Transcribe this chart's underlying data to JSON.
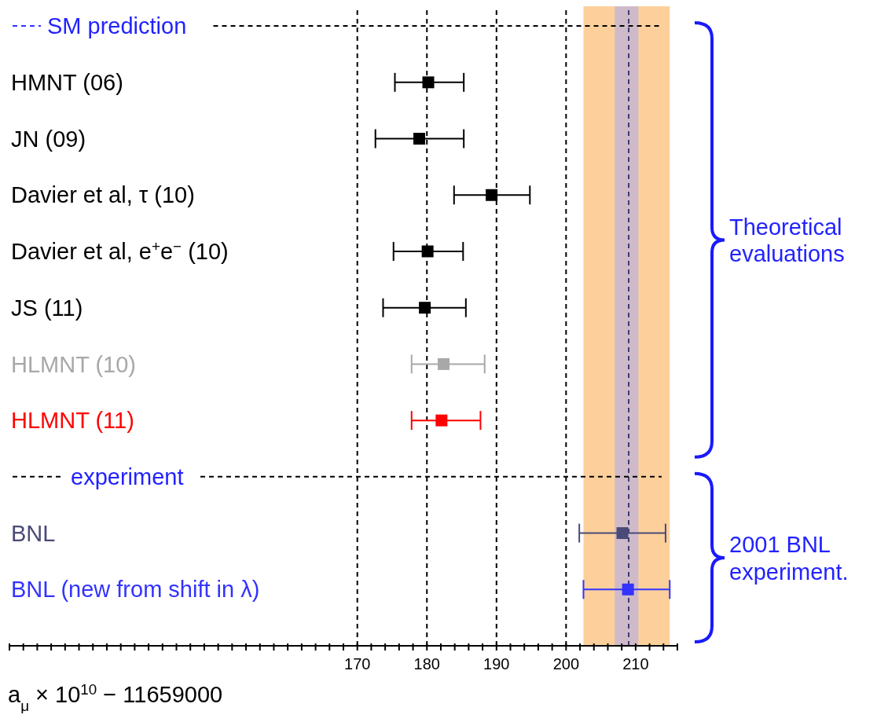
{
  "chart_data": {
    "type": "scatter",
    "marker": "square",
    "orientation": "horizontal",
    "categories": [
      null,
      "HMNT (06)",
      "JN (09)",
      "Davier et al, τ (10)",
      "Davier et al, e$^{+}$e$^{−}$ (10)",
      "JS (11)",
      "HLMNT (10)",
      "HLMNT (11)",
      null,
      "BNL",
      "BNL (new from shift in λ)"
    ],
    "values": [
      null,
      180.2,
      178.9,
      189.3,
      180.1,
      179.7,
      182.4,
      182.1,
      null,
      208.1,
      208.9
    ],
    "errors": [
      null,
      [
        175.4,
        185.3
      ],
      [
        172.6,
        185.3
      ],
      [
        183.9,
        194.8
      ],
      [
        175.2,
        185.2
      ],
      [
        173.7,
        185.6
      ],
      [
        177.8,
        188.3
      ],
      [
        177.8,
        187.7
      ],
      null,
      [
        201.9,
        214.3
      ],
      [
        202.5,
        214.9
      ]
    ],
    "colors": [
      null,
      "#000000",
      "#000000",
      "#000000",
      "#000000",
      "#000000",
      "#a8a8a8",
      "#ff0000",
      null,
      "#4a4a78",
      "#3333ff"
    ],
    "xlabel": "a$_{μ}$ × 10$^{10}$ − 11659000",
    "xlim": [
      120,
      216
    ],
    "xticks": [
      {
        "value": 120,
        "label": null
      },
      {
        "value": 122,
        "label": null
      },
      {
        "value": 124,
        "label": null
      },
      {
        "value": 126,
        "label": null
      },
      {
        "value": 128,
        "label": null
      },
      {
        "value": 130,
        "label": null
      },
      {
        "value": 132,
        "label": null
      },
      {
        "value": 134,
        "label": null
      },
      {
        "value": 136,
        "label": null
      },
      {
        "value": 138,
        "label": null
      },
      {
        "value": 140,
        "label": null
      },
      {
        "value": 142,
        "label": null
      },
      {
        "value": 144,
        "label": null
      },
      {
        "value": 146,
        "label": null
      },
      {
        "value": 148,
        "label": null
      },
      {
        "value": 150,
        "label": null
      },
      {
        "value": 152,
        "label": null
      },
      {
        "value": 154,
        "label": null
      },
      {
        "value": 156,
        "label": null
      },
      {
        "value": 158,
        "label": null
      },
      {
        "value": 160,
        "label": null
      },
      {
        "value": 162,
        "label": null
      },
      {
        "value": 164,
        "label": null
      },
      {
        "value": 166,
        "label": null
      },
      {
        "value": 168,
        "label": null
      },
      170,
      {
        "value": 172,
        "label": null
      },
      {
        "value": 174,
        "label": null
      },
      {
        "value": 176,
        "label": null
      },
      {
        "value": 178,
        "label": null
      },
      180,
      {
        "value": 182,
        "label": null
      },
      {
        "value": 184,
        "label": null
      },
      {
        "value": 186,
        "label": null
      },
      {
        "value": 188,
        "label": null
      },
      190,
      {
        "value": 192,
        "label": null
      },
      {
        "value": 194,
        "label": null
      },
      {
        "value": 196,
        "label": null
      },
      {
        "value": 198,
        "label": null
      },
      200,
      {
        "value": 202,
        "label": null
      },
      {
        "value": 204,
        "label": null
      },
      {
        "value": 206,
        "label": null
      },
      {
        "value": 208,
        "label": null
      },
      210,
      {
        "value": 212,
        "label": null
      },
      {
        "value": 214,
        "label": null
      },
      {
        "value": 216,
        "label": null
      }
    ],
    "bands": [
      {
        "axis": "x",
        "from": 202.5,
        "to": 214.9,
        "color": "#fdd09b"
      },
      {
        "axis": "x",
        "from": 207.0,
        "to": 210.4,
        "color": "#a9a8f0"
      }
    ],
    "ref_lines": [
      {
        "axis": "x",
        "value": 170,
        "color": "#000000",
        "line_style": "dashed"
      },
      {
        "axis": "x",
        "value": 180,
        "color": "#000000",
        "line_style": "dashed"
      },
      {
        "axis": "x",
        "value": 190,
        "color": "#000000",
        "line_style": "dashed"
      },
      {
        "axis": "x",
        "value": 200,
        "color": "#000000",
        "line_style": "dashed"
      },
      {
        "axis": "x",
        "value": 209.0,
        "color": "#3d3d6b",
        "line_style": "dashed"
      }
    ],
    "annotations": [
      "SM prediction",
      "experiment",
      "Theoretical evaluations",
      "2001 BNL experiment."
    ]
  }
}
